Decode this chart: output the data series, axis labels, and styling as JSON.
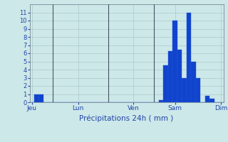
{
  "xlabel": "Précipitations 24h ( mm )",
  "background_color": "#cce8e8",
  "bar_color": "#1144cc",
  "bar_edge_color": "#2255dd",
  "grid_color": "#b0c8c8",
  "text_color": "#2244aa",
  "ylim": [
    0,
    12
  ],
  "yticks": [
    0,
    1,
    2,
    3,
    4,
    5,
    6,
    7,
    8,
    9,
    10,
    11
  ],
  "bar_values": [
    0,
    1,
    1,
    0,
    0,
    0,
    0,
    0,
    0,
    0,
    0,
    0,
    0,
    0,
    0,
    0,
    0,
    0,
    0,
    0,
    0,
    0,
    0,
    0,
    0,
    0,
    0,
    0,
    0.3,
    4.5,
    6.3,
    10,
    6.4,
    3,
    11,
    5,
    3,
    0,
    0.8,
    0.4,
    0,
    0
  ],
  "num_bars": 42,
  "tick_labels_x": [
    "Jeu",
    "Lun",
    "Ven",
    "Sam",
    "Dim"
  ],
  "tick_positions_x": [
    0,
    10,
    22,
    31,
    41
  ],
  "vline_positions": [
    5,
    17,
    27
  ]
}
